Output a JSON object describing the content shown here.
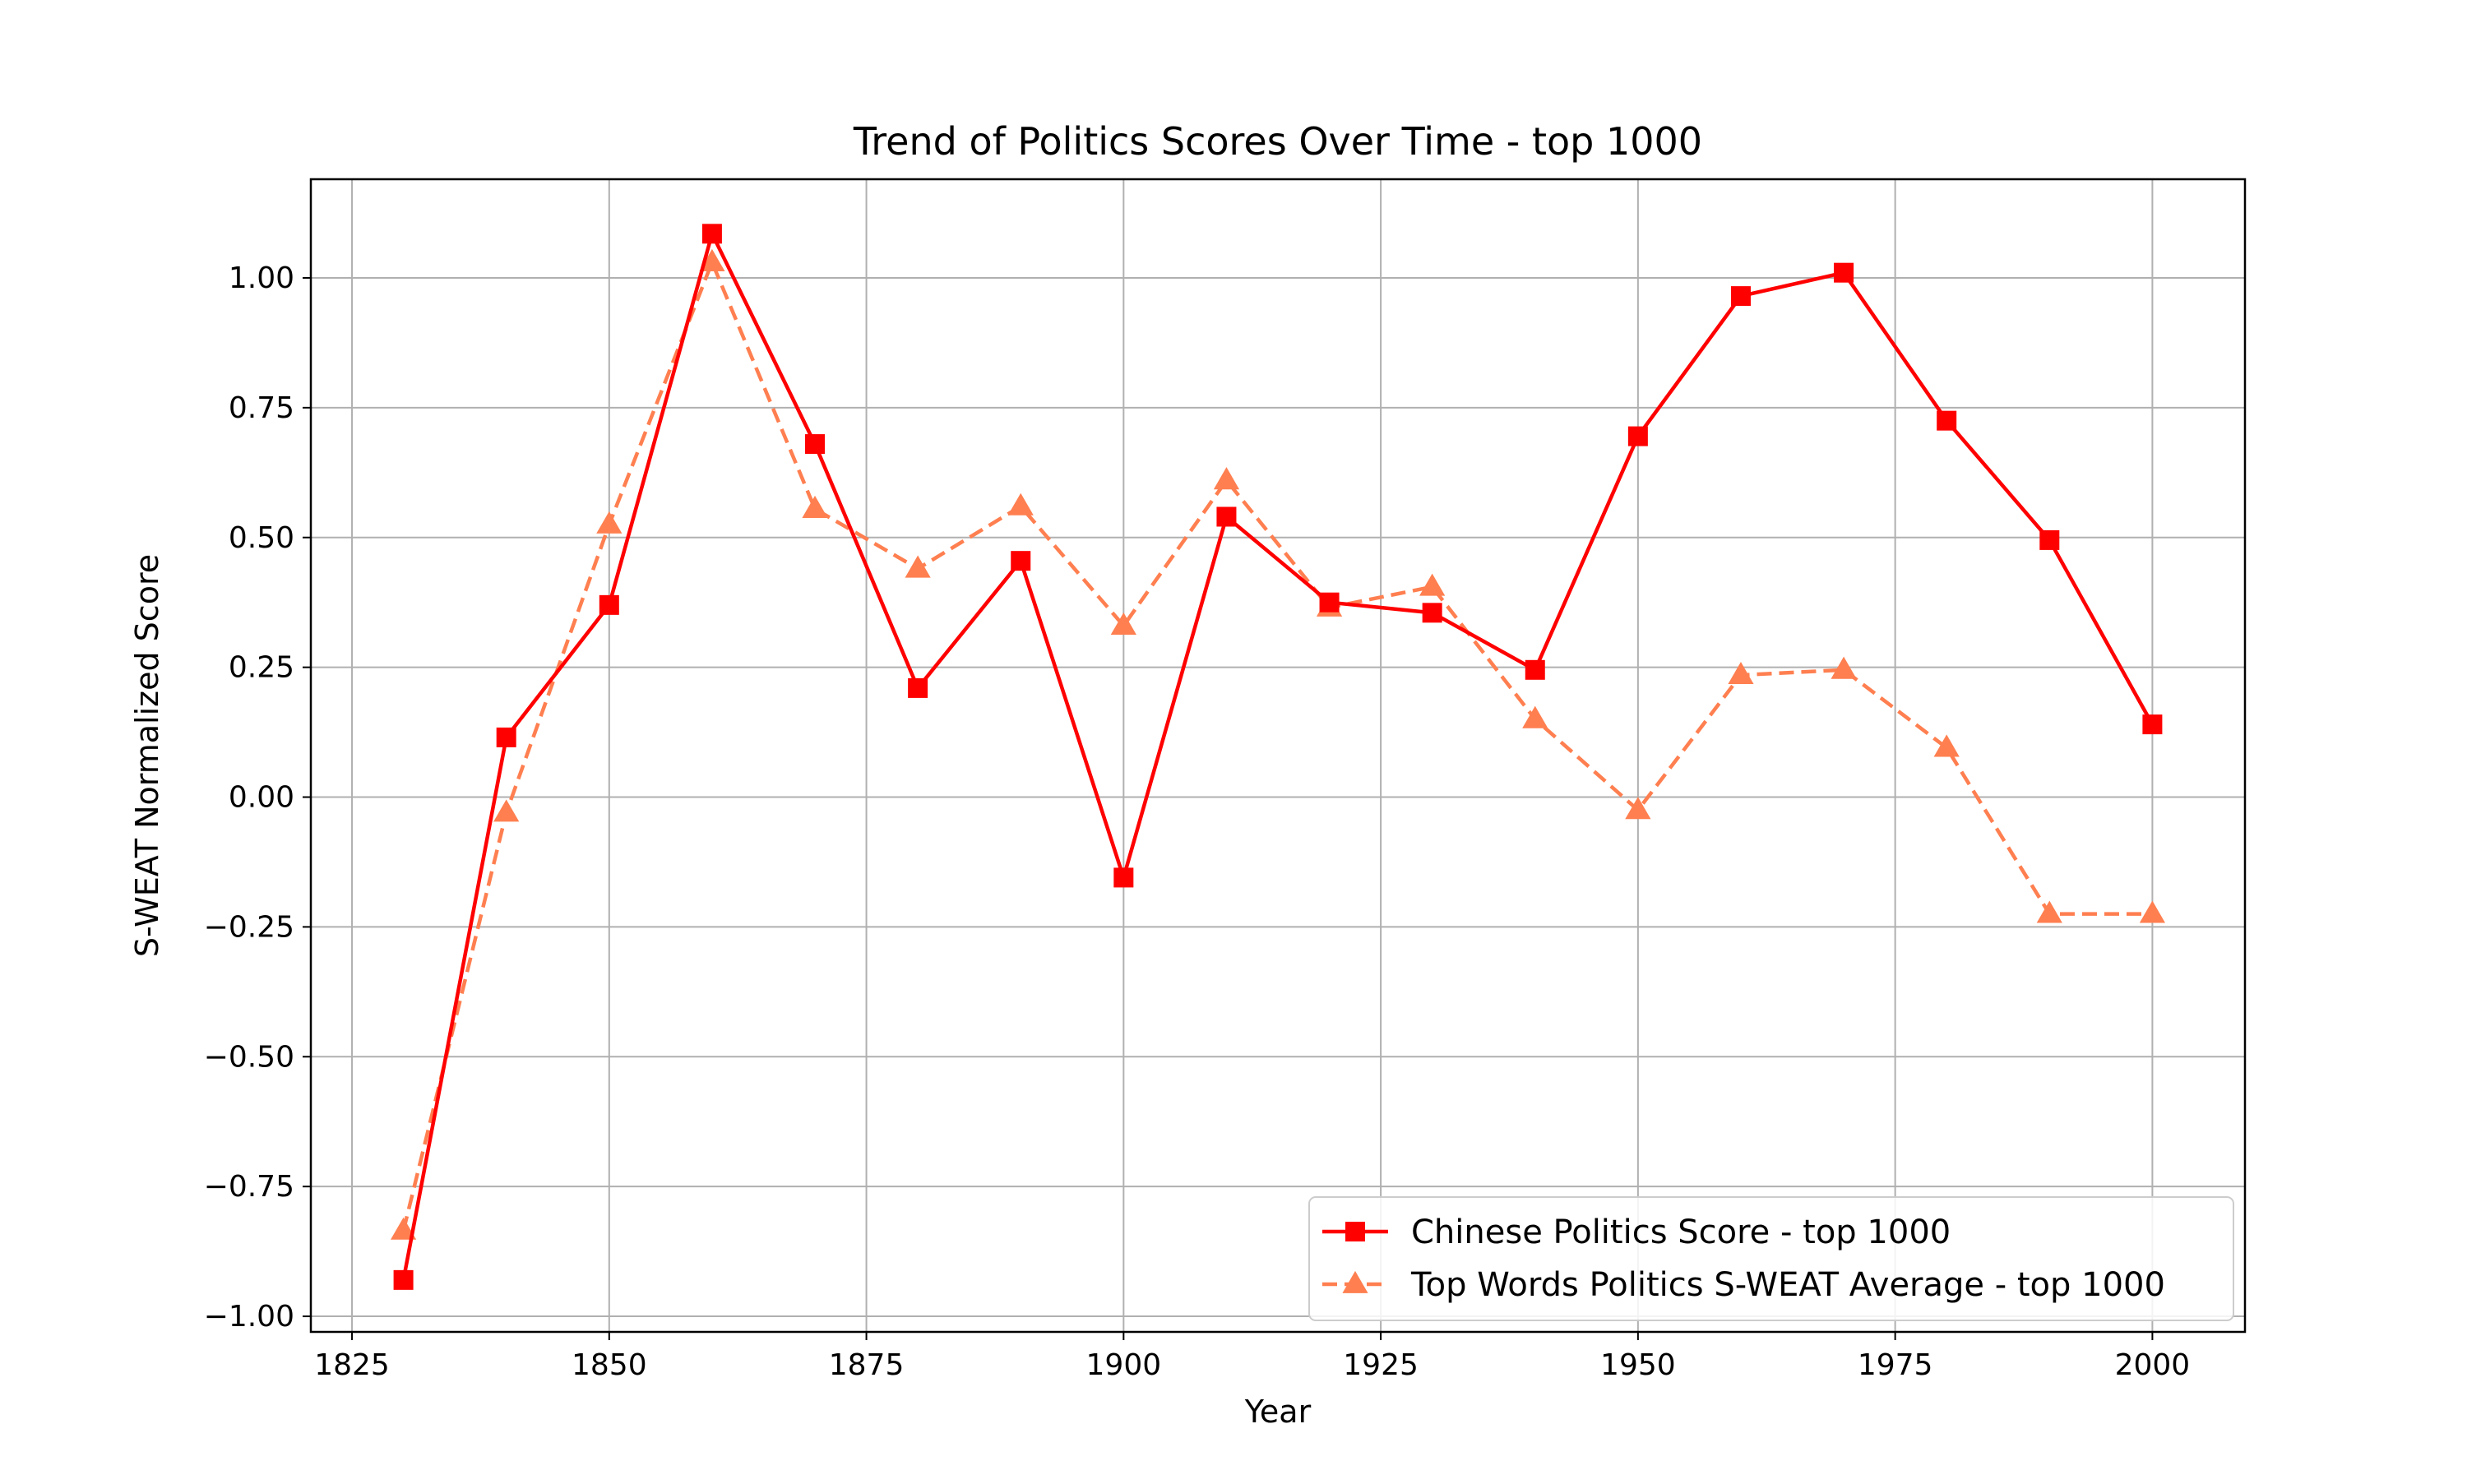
{
  "chart_data": {
    "type": "line",
    "title": "Trend of Politics Scores Over Time - top 1000",
    "xlabel": "Year",
    "ylabel": "S-WEAT Normalized Score",
    "x": [
      1830,
      1840,
      1850,
      1860,
      1870,
      1880,
      1890,
      1900,
      1910,
      1920,
      1930,
      1940,
      1950,
      1960,
      1970,
      1980,
      1990,
      2000
    ],
    "xlim": [
      1821,
      2009
    ],
    "ylim": [
      -1.03,
      1.19
    ],
    "xticks": [
      1825,
      1850,
      1875,
      1900,
      1925,
      1950,
      1975,
      2000
    ],
    "xtick_labels": [
      "1825",
      "1850",
      "1875",
      "1900",
      "1925",
      "1950",
      "1975",
      "2000"
    ],
    "yticks": [
      -1.0,
      -0.75,
      -0.5,
      -0.25,
      0.0,
      0.25,
      0.5,
      0.75,
      1.0
    ],
    "ytick_labels": [
      "−1.00",
      "−0.75",
      "−0.50",
      "−0.25",
      "0.00",
      "0.25",
      "0.50",
      "0.75",
      "1.00"
    ],
    "grid": true,
    "legend_position": "lower-right",
    "series": [
      {
        "name": "Chinese Politics Score - top 1000",
        "color": "#ff0000",
        "marker": "square",
        "linestyle": "solid",
        "values": [
          -0.93,
          0.115,
          0.37,
          1.085,
          0.68,
          0.21,
          0.455,
          -0.155,
          0.54,
          0.375,
          0.355,
          0.245,
          0.695,
          0.965,
          1.01,
          0.725,
          0.495,
          0.14
        ]
      },
      {
        "name": "Top Words Politics S-WEAT Average - top 1000",
        "color": "#ff7f50",
        "marker": "triangle",
        "linestyle": "dashed",
        "values": [
          -0.835,
          -0.03,
          0.525,
          1.03,
          0.555,
          0.44,
          0.56,
          0.33,
          0.61,
          0.365,
          0.405,
          0.15,
          -0.025,
          0.235,
          0.245,
          0.095,
          -0.225,
          -0.225
        ]
      }
    ]
  }
}
